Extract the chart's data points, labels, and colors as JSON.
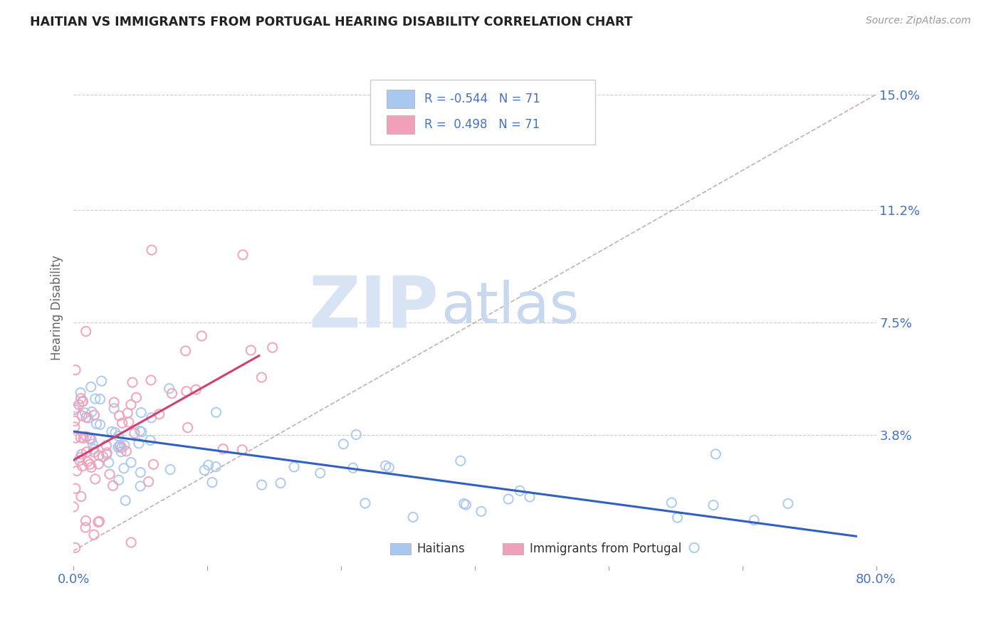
{
  "title": "HAITIAN VS IMMIGRANTS FROM PORTUGAL HEARING DISABILITY CORRELATION CHART",
  "source": "Source: ZipAtlas.com",
  "ylabel": "Hearing Disability",
  "y_tick_values": [
    0.038,
    0.075,
    0.112,
    0.15
  ],
  "y_tick_labels": [
    "3.8%",
    "7.5%",
    "11.2%",
    "15.0%"
  ],
  "xlim": [
    0.0,
    0.8
  ],
  "ylim": [
    -0.005,
    0.165
  ],
  "legend_label1": "Haitians",
  "legend_label2": "Immigrants from Portugal",
  "color_blue": "#A8C8F0",
  "color_pink": "#F0A0B8",
  "color_blue_line": "#3060C0",
  "color_pink_line": "#D04070",
  "color_text_blue": "#4472C4",
  "color_diag": "#C0A0A0",
  "watermark_zip_color": "#D8E4F4",
  "watermark_atlas_color": "#C8D8EE"
}
